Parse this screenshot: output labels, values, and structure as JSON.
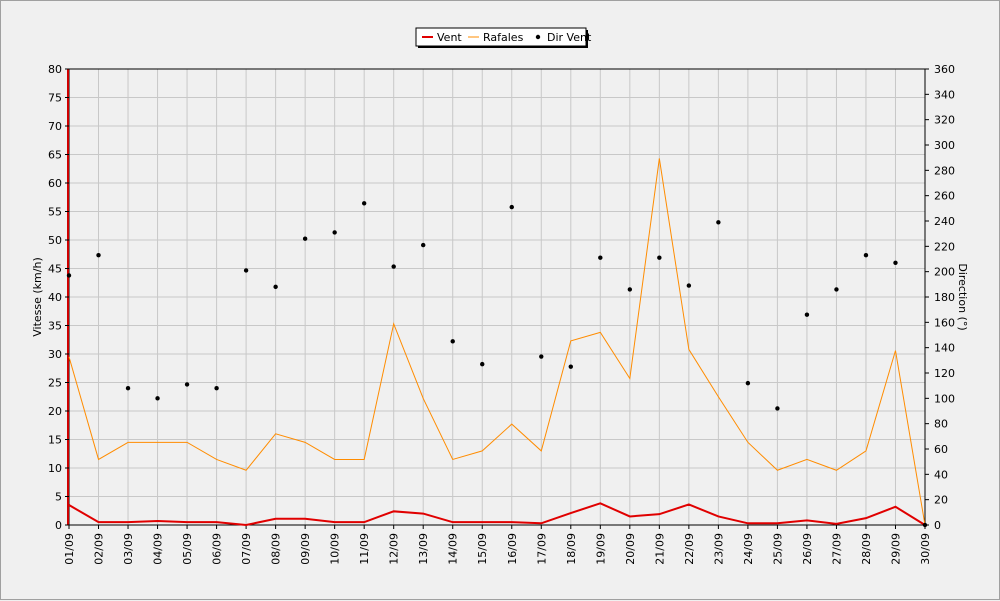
{
  "chart_data": {
    "type": "line",
    "categories": [
      "01/09",
      "02/09",
      "03/09",
      "04/09",
      "05/09",
      "06/09",
      "07/09",
      "08/09",
      "09/09",
      "10/09",
      "11/09",
      "12/09",
      "13/09",
      "14/09",
      "15/09",
      "16/09",
      "17/09",
      "18/09",
      "19/09",
      "20/09",
      "21/09",
      "22/09",
      "23/09",
      "24/09",
      "25/09",
      "26/09",
      "27/09",
      "28/09",
      "29/09",
      "30/09"
    ],
    "ylabel": "Vitesse (km/h)",
    "y2label": "Direction (°)",
    "ylim": [
      0,
      80
    ],
    "yticks": [
      0,
      5,
      10,
      15,
      20,
      25,
      30,
      35,
      40,
      45,
      50,
      55,
      60,
      65,
      70,
      75,
      80
    ],
    "y2lim": [
      0,
      360
    ],
    "y2ticks": [
      0,
      20,
      40,
      60,
      80,
      100,
      120,
      140,
      160,
      180,
      200,
      220,
      240,
      260,
      280,
      300,
      320,
      340,
      360
    ],
    "grid": true,
    "legend_position": "top-center",
    "series": [
      {
        "name": "Vent",
        "axis": "left",
        "kind": "line",
        "color": "#e00000",
        "values": [
          3.5,
          0.5,
          0.5,
          0.7,
          0.5,
          0.5,
          0,
          1.1,
          1.1,
          0.5,
          0.5,
          2.4,
          2,
          0.5,
          0.5,
          0.5,
          0.3,
          2.1,
          3.8,
          1.5,
          1.9,
          3.6,
          1.5,
          0.3,
          0.3,
          0.8,
          0.2,
          1.2,
          3.2,
          0
        ]
      },
      {
        "name": "Rafales",
        "axis": "left",
        "kind": "line",
        "color": "#ff8c00",
        "values": [
          29.5,
          11.5,
          14.5,
          14.5,
          14.5,
          11.5,
          9.6,
          16,
          14.5,
          11.5,
          11.5,
          35.3,
          22.2,
          11.5,
          13,
          17.7,
          13,
          32.3,
          33.8,
          25.7,
          64.3,
          30.8,
          22.5,
          14.5,
          9.6,
          11.5,
          9.6,
          13,
          30.6,
          0
        ]
      },
      {
        "name": "Dir Vent",
        "axis": "right",
        "kind": "scatter",
        "color": "#000000",
        "values": [
          197,
          213,
          108,
          100,
          111,
          108,
          201,
          188,
          226,
          231,
          254,
          204,
          221,
          145,
          127,
          251,
          133,
          125,
          211,
          186,
          211,
          189,
          239,
          112,
          92,
          166,
          186,
          213,
          207,
          0
        ]
      }
    ]
  }
}
